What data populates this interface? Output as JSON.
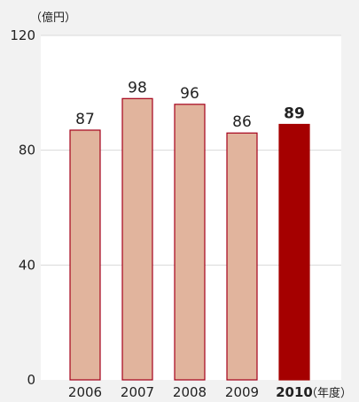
{
  "chart_data": {
    "type": "bar",
    "y_unit_label": "（億円）",
    "x_unit_label": "（年度）",
    "categories": [
      "2006",
      "2007",
      "2008",
      "2009",
      "2010"
    ],
    "values": [
      87,
      98,
      96,
      86,
      89
    ],
    "highlight_index": 4,
    "ylim": [
      0,
      120
    ],
    "yticks": [
      0,
      40,
      80,
      120
    ],
    "grid": true,
    "colors": {
      "bar": "#e1b49d",
      "bar_stroke": "#a5001a",
      "highlight": "#a50000",
      "gridline": "#d9d9d9",
      "plot_bg": "#ffffff"
    }
  }
}
